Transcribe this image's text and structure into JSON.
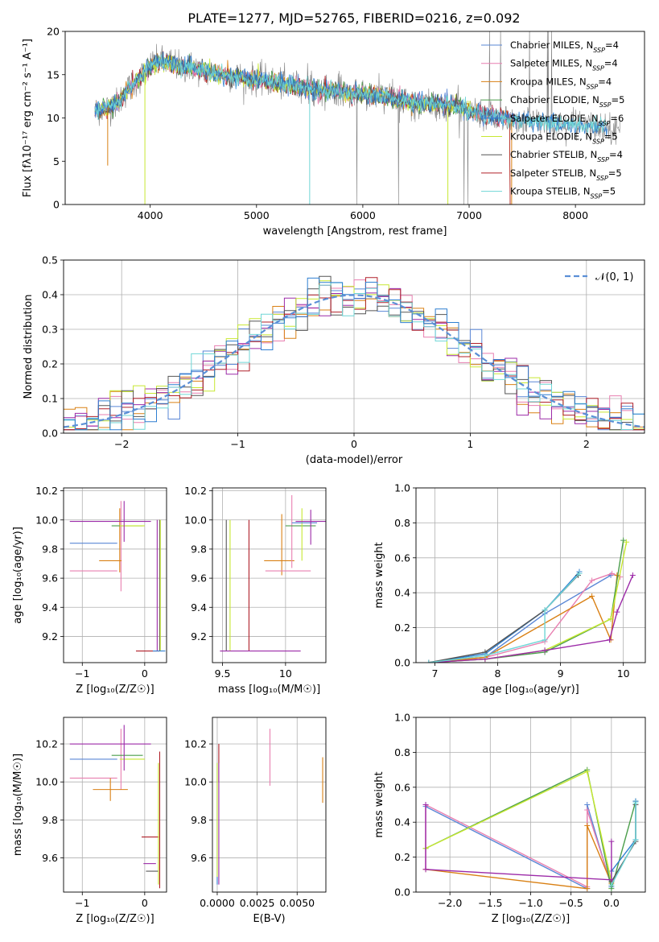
{
  "figure": {
    "title": "PLATE=1277, MJD=52765, FIBERID=0216, z=0.092"
  },
  "series_colors": [
    "#5a87d6",
    "#e87fb0",
    "#d98014",
    "#4b9e4b",
    "#2f7fd1",
    "#c7e832",
    "#555555",
    "#b0202a",
    "#6fd6d6"
  ],
  "chart_data": [
    {
      "id": "spectrum",
      "type": "line",
      "xlabel": "wavelength [Angstrom, rest frame]",
      "ylabel": "Flux [fλ10⁻¹⁷ erg cm⁻² s⁻¹ A⁻¹]",
      "xlim": [
        3200,
        8650
      ],
      "ylim": [
        0,
        20
      ],
      "xticks": [
        4000,
        5000,
        6000,
        7000,
        8000
      ],
      "yticks": [
        0,
        5,
        10,
        15,
        20
      ],
      "grid": false,
      "legend_position": "top-right",
      "legend": [
        "Chabrier MILES, N_SSP=4",
        "Salpeter MILES, N_SSP=4",
        "Kroupa MILES, N_SSP=4",
        "Chabrier ELODIE, N_SSP=5",
        "Salpeter ELODIE, N_SSP=6",
        "Kroupa ELODIE, N_SSP=5",
        "Chabrier STELIB, N_SSP=4",
        "Salpeter STELIB, N_SSP=5",
        "Kroupa STELIB, N_SSP=5"
      ],
      "continuum": [
        [
          3480,
          10.8
        ],
        [
          3600,
          11.2
        ],
        [
          3700,
          11.8
        ],
        [
          3800,
          13.5
        ],
        [
          3900,
          14.6
        ],
        [
          4000,
          16.0
        ],
        [
          4100,
          16.5
        ],
        [
          4200,
          16.4
        ],
        [
          4300,
          15.8
        ],
        [
          4400,
          15.9
        ],
        [
          4500,
          15.4
        ],
        [
          4700,
          15.0
        ],
        [
          4900,
          14.6
        ],
        [
          5100,
          14.3
        ],
        [
          5300,
          13.8
        ],
        [
          5500,
          13.4
        ],
        [
          5700,
          13.1
        ],
        [
          5900,
          12.9
        ],
        [
          6100,
          12.6
        ],
        [
          6300,
          12.2
        ],
        [
          6500,
          11.8
        ],
        [
          6700,
          11.6
        ],
        [
          6900,
          11.3
        ],
        [
          7100,
          10.4
        ],
        [
          7300,
          10.0
        ],
        [
          7500,
          9.7
        ],
        [
          7800,
          9.4
        ],
        [
          8100,
          9.0
        ],
        [
          8400,
          8.9
        ]
      ]
    },
    {
      "id": "residuals",
      "type": "histogram",
      "xlabel": "(data-model)/error",
      "ylabel": "Normed distribution",
      "xlim": [
        -2.5,
        2.5
      ],
      "ylim": [
        0,
        0.5
      ],
      "xticks": [
        -2,
        -1,
        0,
        1,
        2
      ],
      "yticks": [
        0.0,
        0.1,
        0.2,
        0.3,
        0.4,
        0.5
      ],
      "grid": true,
      "legend_position": "top-right",
      "reference_label": "𝒩(0, 1)",
      "bins": 50
    },
    {
      "id": "age_vs_Z",
      "type": "errorbar",
      "xlabel": "Z [log₁₀(Z/Z☉)]",
      "ylabel": "age  [log₁₀(age/yr)]",
      "xlim": [
        -1.3,
        0.35
      ],
      "ylim": [
        9.02,
        10.22
      ],
      "xticks": [
        -1,
        0
      ],
      "yticks": [
        9.2,
        9.4,
        9.6,
        9.8,
        10.0,
        10.2
      ],
      "grid": true,
      "points": [
        {
          "s": 0,
          "x": -0.82,
          "y": 9.84,
          "xe": 0.38,
          "ye": 0.0
        },
        {
          "s": 1,
          "x": -0.82,
          "y": 9.65,
          "xe": 0.38,
          "ye": 0.0
        },
        {
          "s": 1,
          "x": -0.38,
          "y": 9.82,
          "xe": 0.0,
          "ye": 0.31
        },
        {
          "s": 2,
          "x": -0.55,
          "y": 9.72,
          "xe": 0.18,
          "ye": 0.0
        },
        {
          "s": 2,
          "x": -0.4,
          "y": 9.86,
          "xe": 0.0,
          "ye": 0.22
        },
        {
          "s": 3,
          "x": -0.28,
          "y": 9.96,
          "xe": 0.25,
          "ye": 0.0
        },
        {
          "s": 5,
          "x": -0.2,
          "y": 9.96,
          "xe": 0.2,
          "ye": 0.0
        },
        {
          "s": 8,
          "x": -0.55,
          "y": 9.99,
          "xe": 0.65,
          "ye": 0.0
        },
        {
          "s": 8,
          "x": -0.33,
          "y": 9.99,
          "xe": 0.0,
          "ye": 0.14
        },
        {
          "s": 7,
          "x": 0.05,
          "y": 9.1,
          "xe": 0.19,
          "ye": 0.0
        },
        {
          "s": 7,
          "x": 0.24,
          "y": 9.55,
          "xe": 0.0,
          "ye": 0.45
        },
        {
          "s": 6,
          "x": 0.24,
          "y": 9.55,
          "xe": 0.0,
          "ye": 0.45
        },
        {
          "s": 8,
          "x": 0.2,
          "y": 9.55,
          "xe": 0.0,
          "ye": 0.45
        },
        {
          "s": 5,
          "x": 0.25,
          "y": 9.55,
          "xe": 0.0,
          "ye": 0.45
        },
        {
          "s": 4,
          "x": 0.23,
          "y": 9.1,
          "xe": 0.1,
          "ye": 0.0
        }
      ]
    },
    {
      "id": "age_vs_mass",
      "type": "errorbar",
      "xlabel": "mass [log₁₀(M/M☉)]",
      "ylabel": "",
      "xlim": [
        9.42,
        10.32
      ],
      "ylim": [
        9.02,
        10.22
      ],
      "xticks": [
        9.5,
        10.0
      ],
      "yticks": [
        9.2,
        9.4,
        9.6,
        9.8,
        10.0,
        10.2
      ],
      "grid": true,
      "points": [
        {
          "s": 6,
          "x": 9.53,
          "y": 9.55,
          "xe": 0.0,
          "ye": 0.45
        },
        {
          "s": 5,
          "x": 9.56,
          "y": 9.55,
          "xe": 0.0,
          "ye": 0.45
        },
        {
          "s": 7,
          "x": 9.71,
          "y": 9.55,
          "xe": 0.0,
          "ye": 0.45
        },
        {
          "s": 8,
          "x": 9.8,
          "y": 9.1,
          "xe": 0.32,
          "ye": 0.0
        },
        {
          "s": 2,
          "x": 9.95,
          "y": 9.72,
          "xe": 0.12,
          "ye": 0.0
        },
        {
          "s": 2,
          "x": 9.97,
          "y": 9.83,
          "xe": 0.0,
          "ye": 0.21
        },
        {
          "s": 1,
          "x": 10.02,
          "y": 9.65,
          "xe": 0.18,
          "ye": 0.0
        },
        {
          "s": 1,
          "x": 10.05,
          "y": 9.92,
          "xe": 0.0,
          "ye": 0.25
        },
        {
          "s": 3,
          "x": 10.12,
          "y": 9.96,
          "xe": 0.12,
          "ye": 0.0
        },
        {
          "s": 5,
          "x": 10.13,
          "y": 9.9,
          "xe": 0.0,
          "ye": 0.18
        },
        {
          "s": 0,
          "x": 10.15,
          "y": 9.98,
          "xe": 0.1,
          "ye": 0.0
        },
        {
          "s": 8,
          "x": 10.2,
          "y": 9.99,
          "xe": 0.12,
          "ye": 0.0
        },
        {
          "s": 8,
          "x": 10.2,
          "y": 9.95,
          "xe": 0.0,
          "ye": 0.12
        }
      ]
    },
    {
      "id": "weight_vs_age",
      "type": "line",
      "xlabel": "age  [log₁₀(age/yr)]",
      "ylabel": "mass weight",
      "xlim": [
        6.7,
        10.35
      ],
      "ylim": [
        0,
        1.0
      ],
      "xticks": [
        7,
        8,
        9,
        10
      ],
      "yticks": [
        0.0,
        0.2,
        0.4,
        0.6,
        0.8,
        1.0
      ],
      "grid": true,
      "series": [
        {
          "s": 0,
          "points": [
            [
              6.9,
              0.0
            ],
            [
              7.8,
              0.03
            ],
            [
              8.75,
              0.28
            ],
            [
              9.8,
              0.5
            ]
          ]
        },
        {
          "s": 1,
          "points": [
            [
              6.9,
              0.0
            ],
            [
              7.8,
              0.03
            ],
            [
              8.75,
              0.12
            ],
            [
              9.5,
              0.47
            ],
            [
              9.82,
              0.51
            ],
            [
              9.95,
              0.49
            ]
          ]
        },
        {
          "s": 2,
          "points": [
            [
              6.9,
              0.0
            ],
            [
              7.8,
              0.03
            ],
            [
              9.5,
              0.38
            ],
            [
              9.8,
              0.13
            ],
            [
              9.9,
              0.5
            ]
          ]
        },
        {
          "s": 3,
          "points": [
            [
              6.9,
              0.0
            ],
            [
              7.8,
              0.02
            ],
            [
              8.75,
              0.06
            ],
            [
              9.8,
              0.25
            ],
            [
              10.0,
              0.7
            ]
          ]
        },
        {
          "s": 4,
          "points": [
            [
              6.9,
              0.0
            ],
            [
              7.8,
              0.05
            ],
            [
              8.75,
              0.3
            ],
            [
              9.3,
              0.52
            ]
          ]
        },
        {
          "s": 5,
          "points": [
            [
              6.9,
              0.0
            ],
            [
              7.8,
              0.02
            ],
            [
              8.75,
              0.07
            ],
            [
              9.8,
              0.25
            ],
            [
              10.05,
              0.69
            ]
          ]
        },
        {
          "s": 6,
          "points": [
            [
              6.9,
              0.0
            ],
            [
              7.8,
              0.06
            ],
            [
              8.75,
              0.3
            ],
            [
              9.28,
              0.5
            ]
          ]
        },
        {
          "s": 7,
          "points": [
            [
              6.9,
              0.0
            ],
            [
              7.8,
              0.02
            ],
            [
              8.75,
              0.07
            ],
            [
              9.78,
              0.13
            ],
            [
              9.9,
              0.29
            ],
            [
              10.15,
              0.5
            ]
          ]
        },
        {
          "s": 8,
          "points": [
            [
              6.9,
              0.0
            ],
            [
              7.8,
              0.04
            ],
            [
              8.75,
              0.13
            ],
            [
              8.75,
              0.3
            ],
            [
              9.3,
              0.51
            ]
          ]
        }
      ]
    },
    {
      "id": "mass_vs_Z",
      "type": "errorbar",
      "xlabel": "Z [log₁₀(Z/Z☉)]",
      "ylabel": "mass [log₁₀(M/M☉)]",
      "xlim": [
        -1.3,
        0.35
      ],
      "ylim": [
        9.42,
        10.34
      ],
      "xticks": [
        -1,
        0
      ],
      "yticks": [
        9.6,
        9.8,
        10.0,
        10.2
      ],
      "grid": true,
      "points": [
        {
          "s": 0,
          "x": -0.82,
          "y": 10.12,
          "xe": 0.38,
          "ye": 0.0
        },
        {
          "s": 1,
          "x": -0.82,
          "y": 10.02,
          "xe": 0.38,
          "ye": 0.0
        },
        {
          "s": 1,
          "x": -0.38,
          "y": 10.12,
          "xe": 0.0,
          "ye": 0.16
        },
        {
          "s": 2,
          "x": -0.55,
          "y": 9.96,
          "xe": 0.28,
          "ye": 0.0
        },
        {
          "s": 2,
          "x": -0.55,
          "y": 9.96,
          "xe": 0.0,
          "ye": 0.06
        },
        {
          "s": 3,
          "x": -0.28,
          "y": 10.14,
          "xe": 0.25,
          "ye": 0.0
        },
        {
          "s": 5,
          "x": -0.2,
          "y": 10.12,
          "xe": 0.2,
          "ye": 0.0
        },
        {
          "s": 8,
          "x": -0.55,
          "y": 10.2,
          "xe": 0.65,
          "ye": 0.0
        },
        {
          "s": 8,
          "x": -0.33,
          "y": 10.18,
          "xe": 0.0,
          "ye": 0.12
        },
        {
          "s": 7,
          "x": 0.09,
          "y": 9.71,
          "xe": 0.14,
          "ye": 0.0
        },
        {
          "s": 6,
          "x": 0.12,
          "y": 9.53,
          "xe": 0.1,
          "ye": 0.0
        },
        {
          "s": 8,
          "x": 0.08,
          "y": 9.57,
          "xe": 0.1,
          "ye": 0.0
        },
        {
          "s": 7,
          "x": 0.24,
          "y": 9.8,
          "xe": 0.0,
          "ye": 0.36
        },
        {
          "s": 5,
          "x": 0.22,
          "y": 9.78,
          "xe": 0.0,
          "ye": 0.32
        }
      ]
    },
    {
      "id": "mass_vs_ebv",
      "type": "errorbar",
      "xlabel": "E(B-V)",
      "ylabel": "",
      "xlim": [
        -0.0003,
        0.0068
      ],
      "ylim": [
        9.42,
        10.34
      ],
      "xticks": [
        0.0,
        0.0025,
        0.005
      ],
      "xticklabels": [
        "0.0000",
        "0.0025",
        "0.0050"
      ],
      "yticks": [
        9.6,
        9.8,
        10.0,
        10.2
      ],
      "grid": true,
      "points": [
        {
          "s": 1,
          "x": 0.0033,
          "y": 10.13,
          "xe": 0.0,
          "ye": 0.15
        },
        {
          "s": 2,
          "x": 0.0066,
          "y": 10.01,
          "xe": 0.0,
          "ye": 0.12
        },
        {
          "s": 7,
          "x": 0.0001,
          "y": 10.1,
          "xe": 0.0,
          "ye": 0.1
        },
        {
          "s": 4,
          "x": 0.0,
          "y": 9.78,
          "xe": 0.0,
          "ye": 0.32
        },
        {
          "s": 8,
          "x": 0.0001,
          "y": 9.78,
          "xe": 0.0,
          "ye": 0.32
        },
        {
          "s": 5,
          "x": 0.0,
          "y": 9.8,
          "xe": 0.0,
          "ye": 0.3
        }
      ]
    },
    {
      "id": "weight_vs_Z",
      "type": "line",
      "xlabel": "Z [log₁₀(Z/Z☉)]",
      "ylabel": "mass weight",
      "xlim": [
        -2.42,
        0.42
      ],
      "ylim": [
        0,
        1.0
      ],
      "xticks": [
        -2.0,
        -1.5,
        -1.0,
        -0.5,
        0.0
      ],
      "xticklabels": [
        "−2.0",
        "−1.5",
        "−1.0",
        "−0.5",
        "0.0"
      ],
      "yticks": [
        0.0,
        0.2,
        0.4,
        0.6,
        0.8,
        1.0
      ],
      "grid": true,
      "series": [
        {
          "s": 0,
          "points": [
            [
              -2.3,
              0.49
            ],
            [
              -0.3,
              0.02
            ],
            [
              -0.3,
              0.5
            ],
            [
              0.0,
              0.03
            ],
            [
              0.0,
              0.12
            ]
          ]
        },
        {
          "s": 1,
          "points": [
            [
              -2.3,
              0.13
            ],
            [
              -2.3,
              0.5
            ],
            [
              -0.3,
              0.03
            ],
            [
              -0.3,
              0.47
            ],
            [
              0.0,
              0.04
            ]
          ]
        },
        {
          "s": 2,
          "points": [
            [
              -2.3,
              0.13
            ],
            [
              -0.3,
              0.02
            ],
            [
              -0.3,
              0.38
            ],
            [
              0.0,
              0.05
            ]
          ]
        },
        {
          "s": 3,
          "points": [
            [
              -2.3,
              0.25
            ],
            [
              -0.3,
              0.7
            ],
            [
              0.0,
              0.02
            ],
            [
              0.3,
              0.52
            ]
          ]
        },
        {
          "s": 4,
          "points": [
            [
              0.0,
              0.12
            ],
            [
              0.3,
              0.3
            ],
            [
              0.3,
              0.52
            ]
          ]
        },
        {
          "s": 5,
          "points": [
            [
              -2.3,
              0.25
            ],
            [
              -0.3,
              0.69
            ],
            [
              0.0,
              0.06
            ]
          ]
        },
        {
          "s": 6,
          "points": [
            [
              0.0,
              0.06
            ],
            [
              0.3,
              0.29
            ],
            [
              0.3,
              0.5
            ]
          ]
        },
        {
          "s": 7,
          "points": [
            [
              -2.3,
              0.5
            ],
            [
              -2.3,
              0.13
            ],
            [
              0.0,
              0.07
            ],
            [
              0.0,
              0.29
            ]
          ]
        },
        {
          "s": 8,
          "points": [
            [
              0.0,
              0.04
            ],
            [
              0.3,
              0.3
            ],
            [
              0.3,
              0.51
            ]
          ]
        }
      ]
    }
  ]
}
